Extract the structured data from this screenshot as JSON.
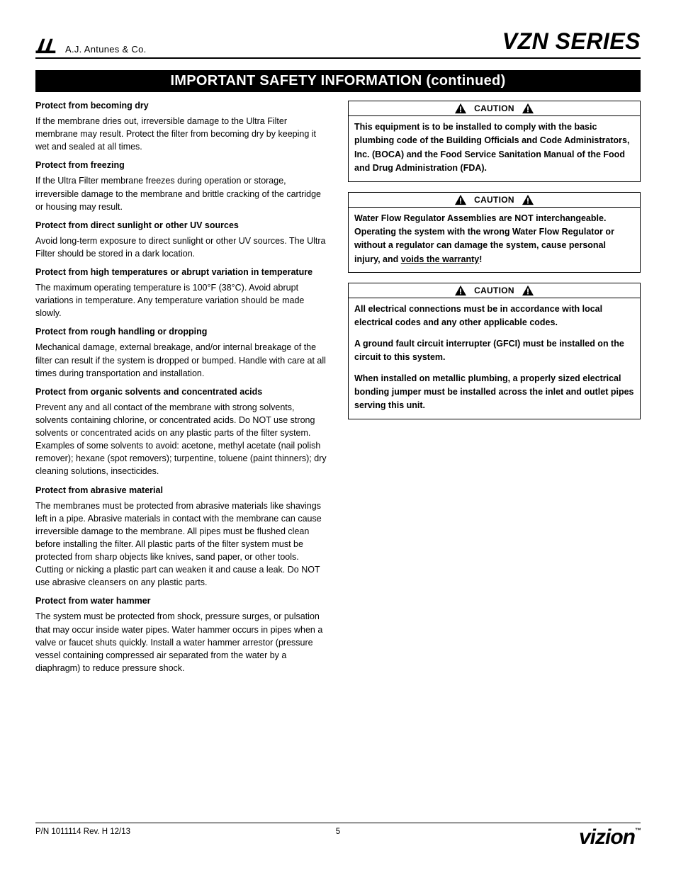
{
  "header": {
    "company_name": "A.J. Antunes & Co.",
    "series_title": "VZN SERIES"
  },
  "section_title": "IMPORTANT SAFETY INFORMATION (continued)",
  "left_column": {
    "sections": [
      {
        "heading": "Protect from becoming dry",
        "text": "If the membrane dries out, irreversible damage to the Ultra Filter membrane may result. Protect the filter from becoming dry by keeping it wet and sealed at all times."
      },
      {
        "heading": "Protect from freezing",
        "text": "If the Ultra Filter membrane freezes during operation or storage, irreversible damage to the membrane and brittle cracking of the cartridge or housing may result."
      },
      {
        "heading": "Protect from direct sunlight or other UV sources",
        "text": "Avoid long-term exposure to direct sunlight or other UV sources. The Ultra Filter should be stored in a dark location."
      },
      {
        "heading": "Protect from high temperatures or abrupt variation in temperature",
        "text": "The maximum operating temperature is 100°F (38°C). Avoid abrupt variations in temperature. Any temperature variation should be made slowly."
      },
      {
        "heading": "Protect from rough handling or dropping",
        "text": "Mechanical damage, external breakage, and/or internal breakage of the filter can result if the system is dropped or bumped. Handle with care at all times during transportation and installation."
      },
      {
        "heading": "Protect from organic solvents and concentrated acids",
        "text": "Prevent any and all contact of the membrane with strong solvents, solvents containing chlorine, or concentrated acids. Do NOT use strong solvents or concentrated acids on any plastic parts of the filter system. Examples of some solvents to avoid: acetone, methyl acetate (nail polish remover); hexane (spot removers); turpentine, toluene (paint thinners); dry cleaning solutions, insecticides."
      },
      {
        "heading": "Protect from abrasive material",
        "text": "The membranes must be protected from abrasive materials like shavings left in a pipe. Abrasive materials in contact with the membrane can cause irreversible damage to the membrane. All pipes must be flushed clean before installing the filter. All plastic parts of the filter system must be protected from sharp objects like knives, sand paper, or other tools. Cutting or nicking a plastic part can weaken it and cause a leak. Do NOT use abrasive cleansers on any plastic parts."
      },
      {
        "heading": "Protect from water hammer",
        "text": "The system must be protected from shock, pressure surges, or pulsation that may occur inside water pipes. Water hammer occurs in pipes when a valve or faucet shuts quickly. Install a water hammer arrestor (pressure vessel containing compressed air separated from the water by a diaphragm) to reduce pressure shock."
      }
    ]
  },
  "right_column": {
    "caution_label": "CAUTION",
    "cautions": [
      {
        "paragraphs": [
          "This equipment is to be installed to comply with the basic plumbing code of the Building Officials and Code Administrators, Inc. (BOCA) and the Food Service Sanitation Manual of the Food and Drug Administration (FDA)."
        ]
      },
      {
        "paragraphs_html": [
          "Water Flow Regulator Assemblies are NOT interchangeable. Operating the system with the wrong Water Flow Regulator or without a regulator can damage the system, cause personal injury, and <span class=\"underline\">voids the warranty</span>!"
        ]
      },
      {
        "paragraphs": [
          "All electrical connections must be in accordance with local electrical codes and any other applicable codes.",
          "A ground fault circuit interrupter (GFCI) must be installed on the circuit to this system.",
          "When installed on metallic plumbing, a properly sized electrical bonding jumper must be installed across the inlet and outlet pipes serving this unit."
        ]
      }
    ]
  },
  "footer": {
    "part_number": "P/N 1011114 Rev. H 12/13",
    "page_number": "5",
    "brand": "vizion"
  },
  "colors": {
    "text": "#000000",
    "background": "#ffffff",
    "section_bar_bg": "#000000",
    "section_bar_text": "#ffffff"
  }
}
